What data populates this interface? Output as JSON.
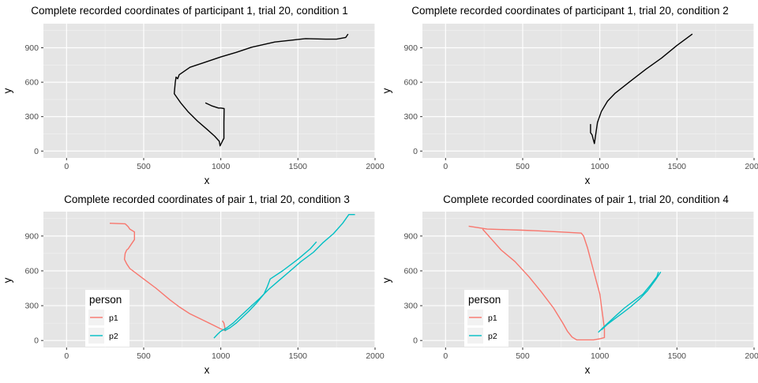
{
  "colors": {
    "panel_bg": "#e5e5e5",
    "grid_major": "#ffffff",
    "grid_minor": "#f2f2f2",
    "tick_text": "#4d4d4d",
    "single": "#000000",
    "p1": "#f8766d",
    "p2": "#00bfc4"
  },
  "chart_data": [
    {
      "type": "line",
      "title": "Complete recorded coordinates of participant 1, trial 20, condition 1",
      "xlabel": "x",
      "ylabel": "y",
      "xlim": [
        -150,
        2000
      ],
      "ylim": [
        -60,
        1110
      ],
      "x_ticks": [
        "0",
        "500",
        "1000",
        "1500",
        "2000"
      ],
      "y_ticks": [
        "0",
        "300",
        "600",
        "900"
      ],
      "grid": true,
      "legend": null,
      "series": [
        {
          "color": "#000000",
          "points": [
            [
              1825,
              1020
            ],
            [
              1810,
              990
            ],
            [
              1750,
              975
            ],
            [
              1680,
              975
            ],
            [
              1550,
              980
            ],
            [
              1450,
              965
            ],
            [
              1350,
              950
            ],
            [
              1200,
              905
            ],
            [
              1100,
              860
            ],
            [
              1000,
              820
            ],
            [
              900,
              775
            ],
            [
              800,
              730
            ],
            [
              730,
              665
            ],
            [
              720,
              630
            ],
            [
              710,
              645
            ],
            [
              705,
              600
            ],
            [
              698,
              500
            ],
            [
              740,
              420
            ],
            [
              790,
              340
            ],
            [
              850,
              260
            ],
            [
              910,
              190
            ],
            [
              960,
              130
            ],
            [
              990,
              85
            ],
            [
              995,
              45
            ],
            [
              1010,
              85
            ],
            [
              1015,
              100
            ],
            [
              1020,
              110
            ],
            [
              1020,
              250
            ],
            [
              1022,
              370
            ],
            [
              1000,
              375
            ],
            [
              985,
              375
            ],
            [
              940,
              395
            ],
            [
              900,
              420
            ]
          ]
        }
      ]
    },
    {
      "type": "line",
      "title": "Complete recorded coordinates of participant 1, trial 20, condition 2",
      "xlabel": "x",
      "ylabel": "y",
      "xlim": [
        -150,
        2000
      ],
      "ylim": [
        -60,
        1110
      ],
      "x_ticks": [
        "0",
        "500",
        "1000",
        "1500",
        "2000"
      ],
      "y_ticks": [
        "0",
        "300",
        "600",
        "900"
      ],
      "grid": true,
      "legend": null,
      "series": [
        {
          "color": "#000000",
          "points": [
            [
              940,
              235
            ],
            [
              940,
              160
            ],
            [
              950,
              140
            ],
            [
              960,
              90
            ],
            [
              965,
              65
            ],
            [
              975,
              160
            ],
            [
              985,
              250
            ],
            [
              1010,
              345
            ],
            [
              1050,
              435
            ],
            [
              1100,
              505
            ],
            [
              1200,
              610
            ],
            [
              1300,
              715
            ],
            [
              1400,
              810
            ],
            [
              1500,
              920
            ],
            [
              1570,
              990
            ],
            [
              1600,
              1020
            ]
          ]
        }
      ]
    },
    {
      "type": "line",
      "title": "Complete recorded coordinates of pair 1, trial 20, condition 3",
      "xlabel": "x",
      "ylabel": "y",
      "xlim": [
        -150,
        2000
      ],
      "ylim": [
        -60,
        1110
      ],
      "x_ticks": [
        "0",
        "500",
        "1000",
        "1500",
        "2000"
      ],
      "y_ticks": [
        "0",
        "300",
        "600",
        "900"
      ],
      "grid": true,
      "legend": {
        "title": "person",
        "position": "bottom-left",
        "entries": [
          {
            "label": "p1",
            "color": "#f8766d"
          },
          {
            "label": "p2",
            "color": "#00bfc4"
          }
        ]
      },
      "series": [
        {
          "name": "p1",
          "color": "#f8766d",
          "points": [
            [
              280,
              1010
            ],
            [
              380,
              1005
            ],
            [
              400,
              980
            ],
            [
              410,
              960
            ],
            [
              440,
              935
            ],
            [
              440,
              870
            ],
            [
              420,
              830
            ],
            [
              400,
              790
            ],
            [
              390,
              780
            ],
            [
              380,
              750
            ],
            [
              375,
              700
            ],
            [
              390,
              660
            ],
            [
              410,
              620
            ],
            [
              500,
              530
            ],
            [
              580,
              450
            ],
            [
              670,
              350
            ],
            [
              730,
              290
            ],
            [
              800,
              230
            ],
            [
              870,
              185
            ],
            [
              940,
              140
            ],
            [
              1000,
              100
            ],
            [
              1030,
              85
            ],
            [
              1020,
              150
            ],
            [
              1010,
              170
            ]
          ]
        },
        {
          "name": "p2",
          "color": "#00bfc4",
          "points": [
            [
              955,
              20
            ],
            [
              980,
              55
            ],
            [
              1000,
              80
            ],
            [
              1040,
              110
            ],
            [
              1080,
              150
            ],
            [
              1120,
              200
            ],
            [
              1160,
              250
            ],
            [
              1200,
              300
            ],
            [
              1250,
              360
            ],
            [
              1310,
              440
            ],
            [
              1380,
              520
            ],
            [
              1450,
              600
            ],
            [
              1520,
              680
            ],
            [
              1600,
              760
            ],
            [
              1660,
              840
            ],
            [
              1730,
              920
            ],
            [
              1790,
              1010
            ],
            [
              1830,
              1085
            ],
            [
              1870,
              1085
            ]
          ]
        },
        {
          "name": "p2",
          "color": "#00bfc4",
          "points": [
            [
              1025,
              85
            ],
            [
              1060,
              110
            ],
            [
              1100,
              150
            ],
            [
              1140,
              200
            ],
            [
              1180,
              250
            ],
            [
              1230,
              320
            ],
            [
              1280,
              400
            ],
            [
              1300,
              460
            ],
            [
              1320,
              530
            ],
            [
              1400,
              600
            ],
            [
              1500,
              700
            ],
            [
              1580,
              790
            ],
            [
              1620,
              850
            ]
          ]
        }
      ]
    },
    {
      "type": "line",
      "title": "Complete recorded coordinates of pair 1, trial 20, condition 4",
      "xlabel": "x",
      "ylabel": "y",
      "xlim": [
        -150,
        2000
      ],
      "ylim": [
        -60,
        1110
      ],
      "x_ticks": [
        "0",
        "500",
        "1000",
        "1500",
        "2000"
      ],
      "y_ticks": [
        "0",
        "300",
        "600",
        "900"
      ],
      "grid": true,
      "legend": {
        "title": "person",
        "position": "bottom-left",
        "entries": [
          {
            "label": "p1",
            "color": "#f8766d"
          },
          {
            "label": "p2",
            "color": "#00bfc4"
          }
        ]
      },
      "series": [
        {
          "name": "p1",
          "color": "#f8766d",
          "points": [
            [
              150,
              985
            ],
            [
              270,
              960
            ],
            [
              390,
              955
            ],
            [
              500,
              950
            ],
            [
              600,
              945
            ],
            [
              740,
              935
            ],
            [
              880,
              925
            ],
            [
              895,
              900
            ],
            [
              920,
              800
            ],
            [
              940,
              700
            ],
            [
              960,
              600
            ],
            [
              980,
              500
            ],
            [
              1000,
              400
            ],
            [
              1010,
              300
            ],
            [
              1020,
              200
            ],
            [
              1030,
              100
            ],
            [
              1030,
              25
            ],
            [
              1000,
              15
            ],
            [
              960,
              5
            ],
            [
              900,
              5
            ],
            [
              850,
              5
            ],
            [
              820,
              30
            ],
            [
              790,
              80
            ],
            [
              760,
              150
            ],
            [
              700,
              280
            ],
            [
              620,
              420
            ],
            [
              540,
              550
            ],
            [
              450,
              680
            ],
            [
              360,
              780
            ],
            [
              300,
              870
            ],
            [
              240,
              960
            ]
          ]
        },
        {
          "name": "p2",
          "color": "#00bfc4",
          "points": [
            [
              990,
              70
            ],
            [
              1020,
              110
            ],
            [
              1060,
              160
            ],
            [
              1110,
              220
            ],
            [
              1160,
              280
            ],
            [
              1220,
              340
            ],
            [
              1280,
              400
            ],
            [
              1330,
              480
            ],
            [
              1370,
              550
            ],
            [
              1380,
              590
            ]
          ]
        },
        {
          "name": "p2",
          "color": "#00bfc4",
          "points": [
            [
              1010,
              90
            ],
            [
              1050,
              140
            ],
            [
              1100,
              190
            ],
            [
              1150,
              240
            ],
            [
              1200,
              290
            ],
            [
              1260,
              360
            ],
            [
              1310,
              430
            ],
            [
              1360,
              520
            ],
            [
              1395,
              590
            ]
          ]
        }
      ]
    }
  ]
}
